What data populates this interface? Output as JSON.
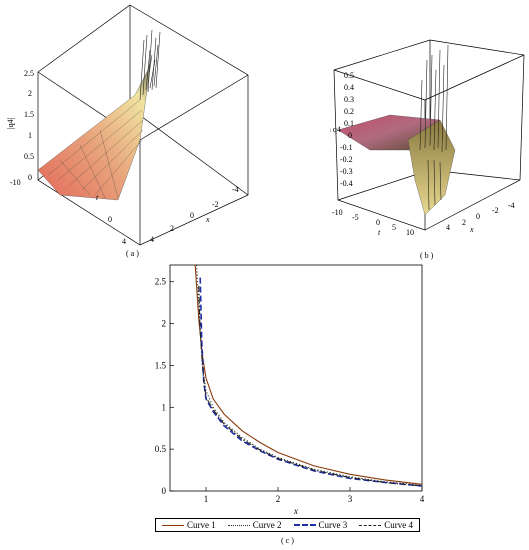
{
  "panels": {
    "a": {
      "caption": "( a )",
      "zlabel": "|q4|",
      "xlabel": "x",
      "tlabel": "t",
      "zticks": [
        "0",
        "0.5",
        "1",
        "1.5",
        "2",
        "2.5"
      ],
      "xticks": [
        "-4",
        "-2",
        "0",
        "2",
        "4"
      ],
      "tticks": [
        "-10",
        "0",
        "4"
      ]
    },
    "b": {
      "caption": "( b )",
      "zlabel": "Im q4",
      "xlabel": "x",
      "tlabel": "t",
      "zticks": [
        "0.5",
        "0.4",
        "0.3",
        "0.2",
        "0.1",
        "0",
        "-0.1",
        "-0.2",
        "-0.3",
        "-0.4"
      ],
      "xticks": [
        "-4",
        "-2",
        "0",
        "2",
        "4"
      ],
      "tticks": [
        "-10",
        "-5",
        "0",
        "5",
        "10"
      ]
    },
    "c": {
      "caption": "( c )"
    }
  },
  "chart_data": {
    "type": "line",
    "xlabel": "x",
    "ylabel": "",
    "xlim": [
      0.5,
      4
    ],
    "ylim": [
      0,
      2.7
    ],
    "xticks": [
      "1",
      "2",
      "3",
      "4"
    ],
    "yticks": [
      "0",
      "0.5",
      "1",
      "1.5",
      "2",
      "2.5"
    ],
    "series": [
      {
        "name": "Curve 1",
        "color": "#8B3A0A",
        "dash": "solid",
        "x": [
          0.85,
          0.9,
          0.95,
          1.0,
          1.1,
          1.25,
          1.5,
          1.75,
          2.0,
          2.5,
          3.0,
          3.5,
          4.0
        ],
        "y": [
          2.7,
          2.05,
          1.62,
          1.35,
          1.1,
          0.92,
          0.72,
          0.58,
          0.46,
          0.3,
          0.2,
          0.13,
          0.08
        ]
      },
      {
        "name": "Curve 2",
        "color": "#333333",
        "dash": "dotted",
        "x": [
          0.87,
          0.9,
          0.95,
          1.0,
          1.1,
          1.25,
          1.5,
          1.75,
          2.0,
          2.5,
          3.0,
          3.5,
          4.0
        ],
        "y": [
          2.7,
          2.2,
          1.5,
          1.2,
          1.0,
          0.82,
          0.64,
          0.5,
          0.4,
          0.26,
          0.17,
          0.11,
          0.07
        ]
      },
      {
        "name": "Curve 3",
        "color": "#1F2FA8",
        "dash": "dashed",
        "x": [
          0.92,
          0.94,
          0.97,
          1.0,
          1.1,
          1.25,
          1.5,
          1.75,
          2.0,
          2.5,
          3.0,
          3.5,
          4.0
        ],
        "y": [
          2.55,
          1.8,
          1.3,
          1.1,
          0.95,
          0.78,
          0.6,
          0.48,
          0.38,
          0.24,
          0.15,
          0.1,
          0.06
        ]
      },
      {
        "name": "Curve 4",
        "color": "#222222",
        "dash": "dashdot",
        "x": [
          0.9,
          0.92,
          0.96,
          1.0,
          1.1,
          1.25,
          1.5,
          1.75,
          2.0,
          2.5,
          3.0,
          3.5,
          4.0
        ],
        "y": [
          2.45,
          1.9,
          1.4,
          1.12,
          0.97,
          0.8,
          0.62,
          0.49,
          0.39,
          0.25,
          0.16,
          0.1,
          0.06
        ]
      }
    ]
  }
}
